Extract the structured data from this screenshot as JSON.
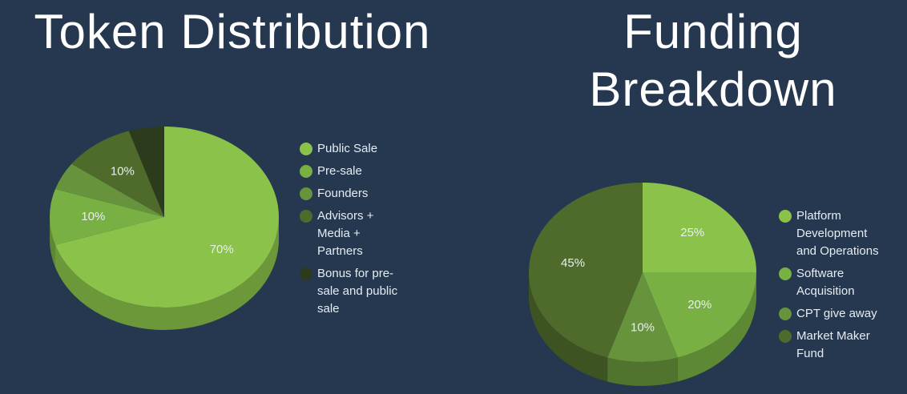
{
  "chart_data": [
    {
      "type": "pie",
      "title": "Token Distribution",
      "categories": [
        "Public Sale",
        "Pre-sale",
        "Founders",
        "Advisors + Media + Partners",
        "Bonus for pre-sale and public sale"
      ],
      "values": [
        70,
        10,
        5,
        10,
        5
      ],
      "value_labels": [
        "70%",
        "10%",
        null,
        "10%",
        null
      ],
      "colors": [
        "#8bc34a",
        "#79b043",
        "#66933b",
        "#4f6b2b",
        "#2b3b1c"
      ]
    },
    {
      "type": "pie",
      "title": "Funding Breakdown",
      "categories": [
        "Platform Development and Operations",
        "Software Acquisition",
        "CPT give away",
        "Market Maker Fund"
      ],
      "values": [
        25,
        20,
        10,
        45
      ],
      "value_labels": [
        "25%",
        "20%",
        "10%",
        "45%"
      ],
      "colors": [
        "#8bc34a",
        "#79b043",
        "#66933b",
        "#4f6b2b"
      ]
    }
  ]
}
